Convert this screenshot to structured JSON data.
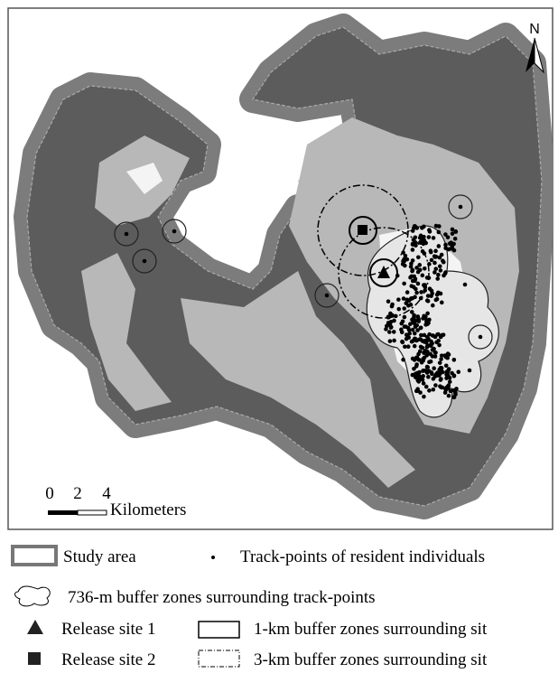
{
  "map": {
    "north": "N",
    "scale": {
      "labels": [
        "0",
        "2",
        "4"
      ],
      "unit": "Kilometers"
    }
  },
  "legend": {
    "items": [
      "Study area",
      "Track-points of resident individuals",
      "736-m buffer zones surrounding track-points",
      "Release site 1",
      "1-km buffer zones surrounding sit",
      "Release site 2",
      "3-km buffer zones surrounding sit"
    ]
  }
}
